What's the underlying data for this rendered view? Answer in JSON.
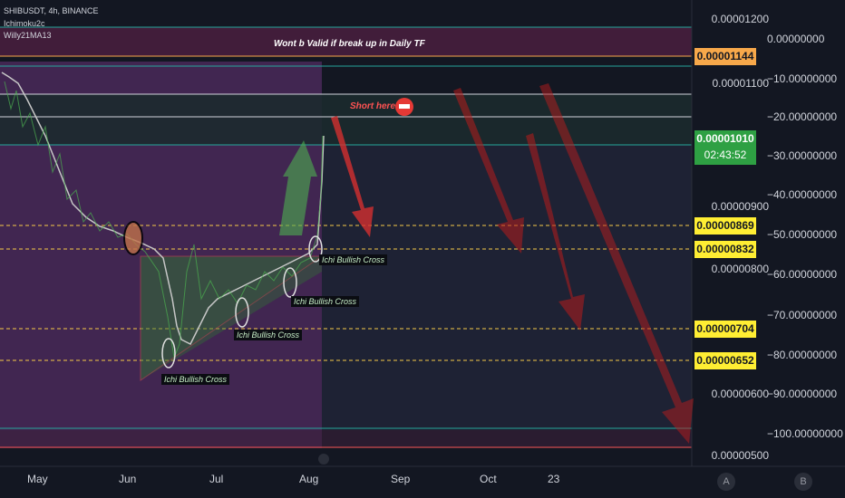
{
  "header": {
    "symbol_line": "SHIBUSDT, 4h, BINANCE",
    "indicator_1": "Ichimoku2c",
    "indicator_2": "Willy21MA13"
  },
  "notes": {
    "validity": "Wont b Valid if break up in Daily TF",
    "short_here": "Short here"
  },
  "cross_labels": [
    "Ichi Bullish Cross",
    "Ichi Bullish Cross",
    "Ichi Bullish Cross",
    "Ichi Bullish Cross"
  ],
  "price_axis": {
    "labels": [
      "0.00001200",
      "0.00001100",
      "0.00000900",
      "0.00000800",
      "0.00000600",
      "0.00000500"
    ]
  },
  "oscillator_axis": {
    "labels": [
      "0.00000000",
      "−10.00000000",
      "−20.00000000",
      "−30.00000000",
      "−40.00000000",
      "−50.00000000",
      "−60.00000000",
      "−70.00000000",
      "−80.00000000",
      "−90.00000000",
      "−100.00000000"
    ]
  },
  "price_tags": {
    "resistance": "0.00001144",
    "current": "0.00001010",
    "countdown": "02:43:52",
    "level_1": "0.00000869",
    "level_2": "0.00000832",
    "level_3": "0.00000704",
    "level_4": "0.00000652"
  },
  "time_axis": {
    "labels": [
      "May",
      "Jun",
      "Jul",
      "Aug",
      "Sep",
      "Oct",
      "23"
    ]
  },
  "buttons": {
    "a": "A",
    "b": "B"
  },
  "colors": {
    "background": "#131722",
    "bearish_arrow": "#c0392b",
    "bullish_arrow": "#4caf50",
    "orange_tag": "#f7a84a",
    "yellow_tag": "#ffee33",
    "green_tag": "#2ea043"
  }
}
